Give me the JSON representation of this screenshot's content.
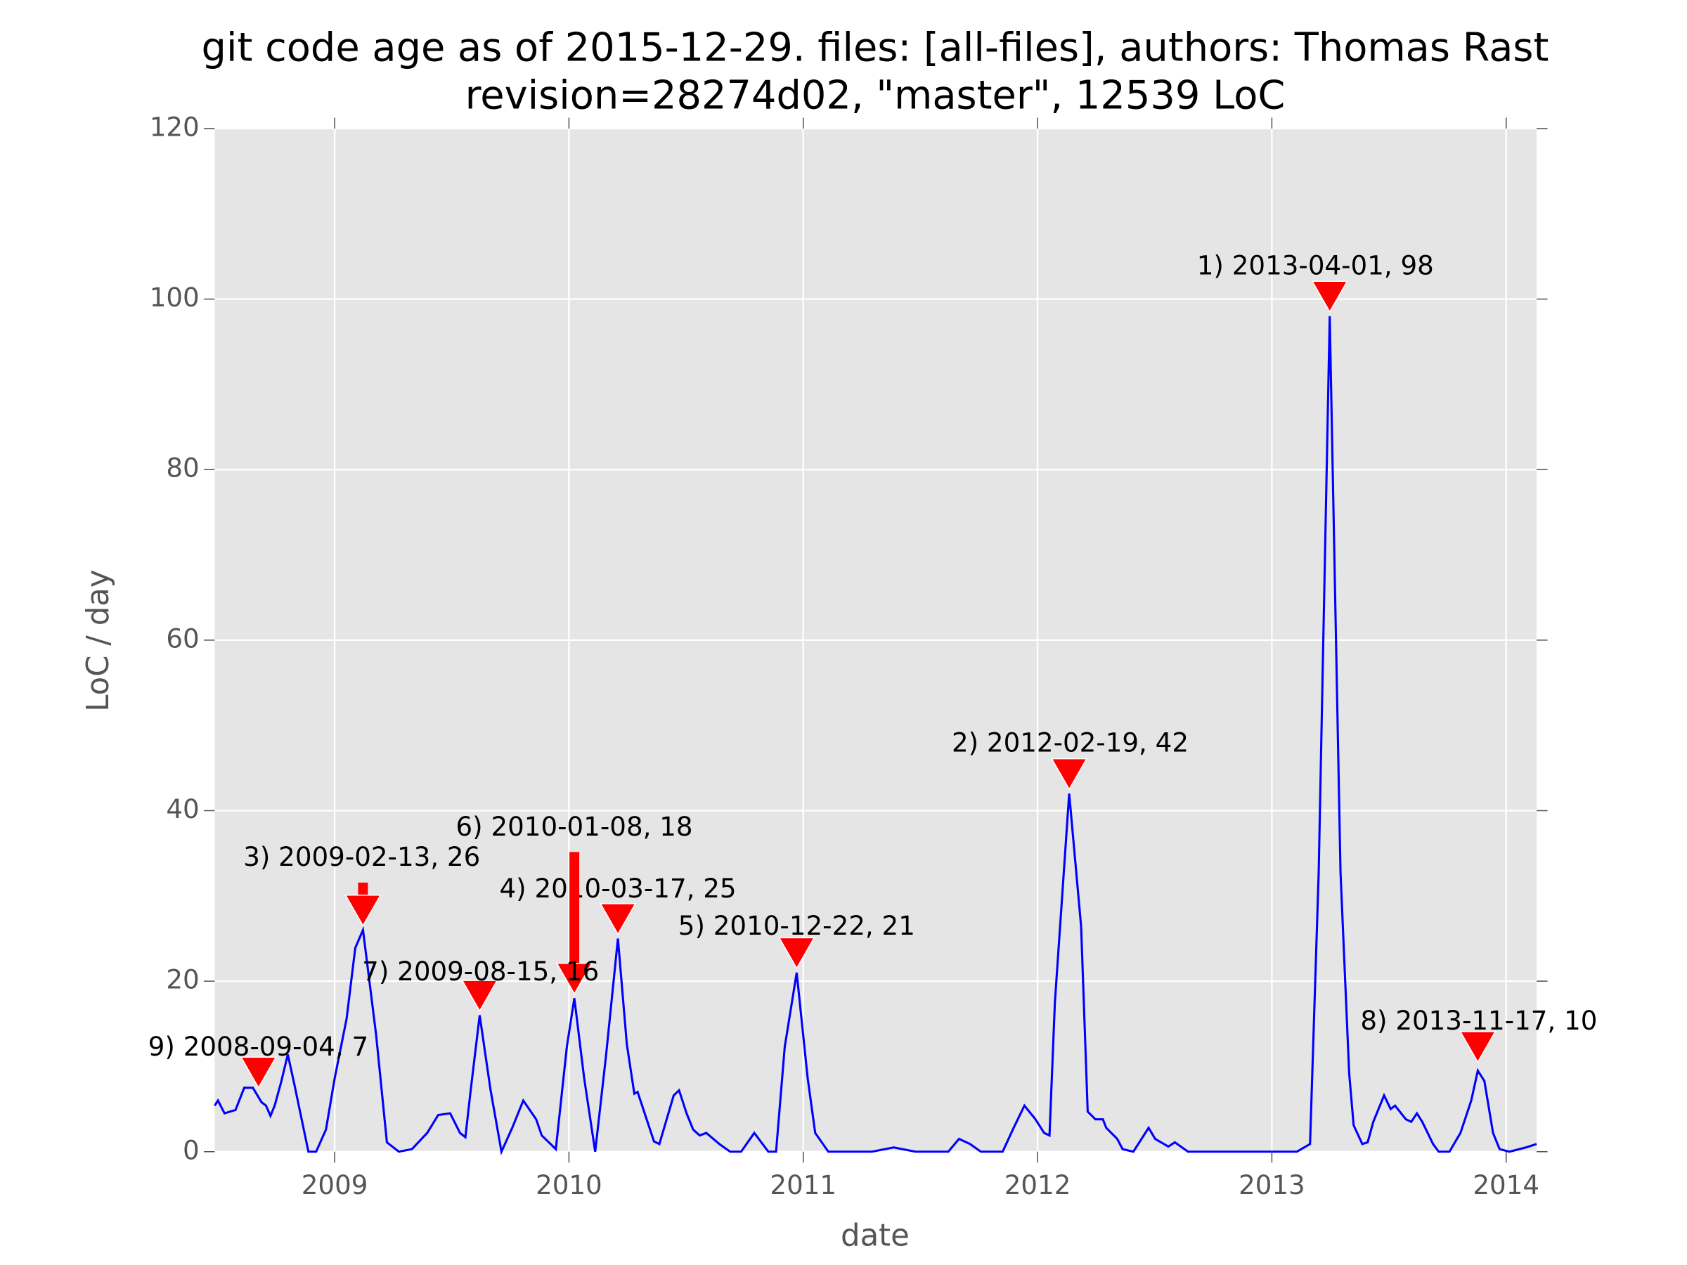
{
  "chart_data": {
    "type": "line",
    "title": "git code age as of 2015-12-29. files: [all-files], authors: Thomas Rast",
    "subtitle": "revision=28274d02, \"master\", 12539 LoC",
    "x_label": "date",
    "y_label": "LoC / day",
    "xlim": [
      2008.488,
      2014.13
    ],
    "xticks": [
      2009,
      2010,
      2011,
      2012,
      2013,
      2014
    ],
    "ylim": [
      0,
      120
    ],
    "yticks": [
      0,
      20,
      40,
      60,
      80,
      100,
      120
    ],
    "grid": true,
    "series": [
      {
        "name": "LoC / day",
        "color": "#0000ff",
        "x": [
          2008.488,
          2008.502,
          2008.53,
          2008.577,
          2008.614,
          2008.651,
          2008.688,
          2008.707,
          2008.726,
          2008.744,
          2008.772,
          2008.8,
          2008.828,
          2008.888,
          2008.921,
          2008.963,
          2009.0,
          2009.051,
          2009.088,
          2009.121,
          2009.177,
          2009.223,
          2009.274,
          2009.33,
          2009.395,
          2009.442,
          2009.493,
          2009.535,
          2009.558,
          2009.581,
          2009.619,
          2009.665,
          2009.712,
          2009.758,
          2009.805,
          2009.86,
          2009.884,
          2009.944,
          2009.991,
          2010.023,
          2010.065,
          2010.112,
          2010.158,
          2010.209,
          2010.247,
          2010.279,
          2010.293,
          2010.363,
          2010.386,
          2010.447,
          2010.47,
          2010.502,
          2010.53,
          2010.558,
          2010.586,
          2010.642,
          2010.688,
          2010.735,
          2010.791,
          2010.851,
          2010.884,
          2010.921,
          2010.972,
          2011.019,
          2011.051,
          2011.107,
          2011.293,
          2011.386,
          2011.479,
          2011.619,
          2011.665,
          2011.712,
          2011.758,
          2011.851,
          2011.898,
          2011.944,
          2011.991,
          2012.028,
          2012.051,
          2012.074,
          2012.135,
          2012.186,
          2012.214,
          2012.247,
          2012.279,
          2012.293,
          2012.34,
          2012.363,
          2012.409,
          2012.474,
          2012.502,
          2012.558,
          2012.586,
          2012.642,
          2012.688,
          2013.107,
          2013.163,
          2013.2,
          2013.247,
          2013.293,
          2013.33,
          2013.349,
          2013.386,
          2013.409,
          2013.433,
          2013.479,
          2013.507,
          2013.526,
          2013.572,
          2013.595,
          2013.619,
          2013.642,
          2013.688,
          2013.712,
          2013.758,
          2013.805,
          2013.851,
          2013.879,
          2013.907,
          2013.944,
          2013.972,
          2014.014,
          2014.084,
          2014.13
        ],
        "values": [
          5.4,
          6.0,
          4.5,
          4.9,
          7.5,
          7.5,
          5.8,
          5.4,
          4.2,
          5.4,
          8.2,
          11.4,
          7.9,
          0,
          0,
          2.6,
          8.6,
          15.6,
          23.9,
          26,
          13.7,
          1.1,
          0,
          0.3,
          2.2,
          4.3,
          4.5,
          2.2,
          1.7,
          7.3,
          16,
          7.3,
          0,
          2.8,
          6.0,
          3.8,
          1.9,
          0.3,
          12.3,
          18,
          8.6,
          0,
          11.2,
          25,
          12.6,
          6.8,
          7.0,
          1.2,
          0.9,
          6.6,
          7.2,
          4.5,
          2.6,
          1.9,
          2.2,
          0.9,
          0,
          0,
          2.2,
          0,
          0,
          12.3,
          21,
          8.6,
          2.2,
          0,
          0,
          0.5,
          0,
          0,
          1.5,
          0.9,
          0,
          0,
          2.8,
          5.4,
          3.8,
          2.2,
          1.9,
          17.5,
          42,
          26.4,
          4.7,
          3.8,
          3.8,
          2.8,
          1.5,
          0.3,
          0,
          2.8,
          1.5,
          0.6,
          1.1,
          0,
          0,
          0,
          0.9,
          32.8,
          98,
          32.8,
          9.2,
          3.1,
          0.9,
          1.1,
          3.5,
          6.6,
          5.0,
          5.4,
          3.8,
          3.5,
          4.5,
          3.5,
          0.9,
          0,
          0,
          2.2,
          6.0,
          9.5,
          8.3,
          2.2,
          0.3,
          0,
          0.5,
          0.9
        ]
      }
    ],
    "annotations": [
      {
        "text": "1) 2013-04-01, 98",
        "x": 2013.247,
        "y": 98
      },
      {
        "text": "2) 2012-02-19, 42",
        "x": 2012.135,
        "y": 42
      },
      {
        "text": "3) 2009-02-13, 26",
        "x": 2009.121,
        "y": 26
      },
      {
        "text": "4) 2010-03-17, 25",
        "x": 2010.209,
        "y": 25
      },
      {
        "text": "5) 2010-12-22, 21",
        "x": 2010.972,
        "y": 21
      },
      {
        "text": "6) 2010-01-08, 18",
        "x": 2010.023,
        "y": 18
      },
      {
        "text": "7) 2009-08-15, 16",
        "x": 2009.619,
        "y": 16
      },
      {
        "text": "8) 2013-11-17, 10",
        "x": 2013.879,
        "y": 10
      },
      {
        "text": "9) 2008-09-04, 7",
        "x": 2008.675,
        "y": 7
      }
    ],
    "marker_color": "#ff0000"
  }
}
